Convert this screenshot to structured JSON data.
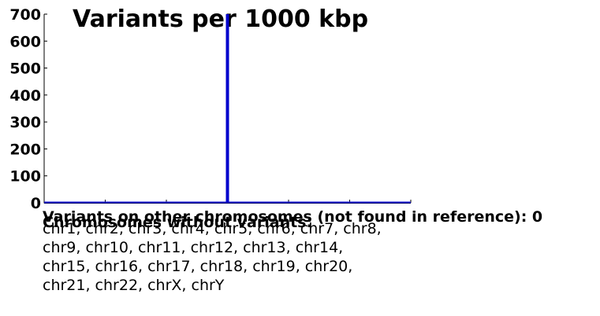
{
  "chart_data": {
    "type": "line",
    "title": "Variants per 1000 kbp",
    "xlabel": "",
    "ylabel": "",
    "ylim": [
      0,
      700
    ],
    "yticks": [
      "0",
      "100",
      "200",
      "300",
      "400",
      "500",
      "600",
      "700"
    ],
    "xlim": [
      0,
      6
    ],
    "x_tick_positions": [
      0,
      1,
      2,
      3,
      4,
      5,
      6
    ],
    "x_tick_labels": [],
    "series": [
      {
        "color": "#0000cc",
        "spike_at_x": 3,
        "peak_value": 700,
        "baseline_value": 0
      }
    ],
    "grid": false,
    "legend": "none"
  },
  "notes": {
    "other_chromosomes": "Variants on other chromosomes (not found in reference): 0",
    "without_variants_heading": "Chromosomes without variants:",
    "without_variants_list": "chr1, chr2, chr3, chr4, chr5, chr6, chr7, chr8, chr9, chr10, chr11, chr12, chr13, chr14, chr15, chr16, chr17, chr18, chr19, chr20, chr21, chr22, chrX, chrY"
  }
}
